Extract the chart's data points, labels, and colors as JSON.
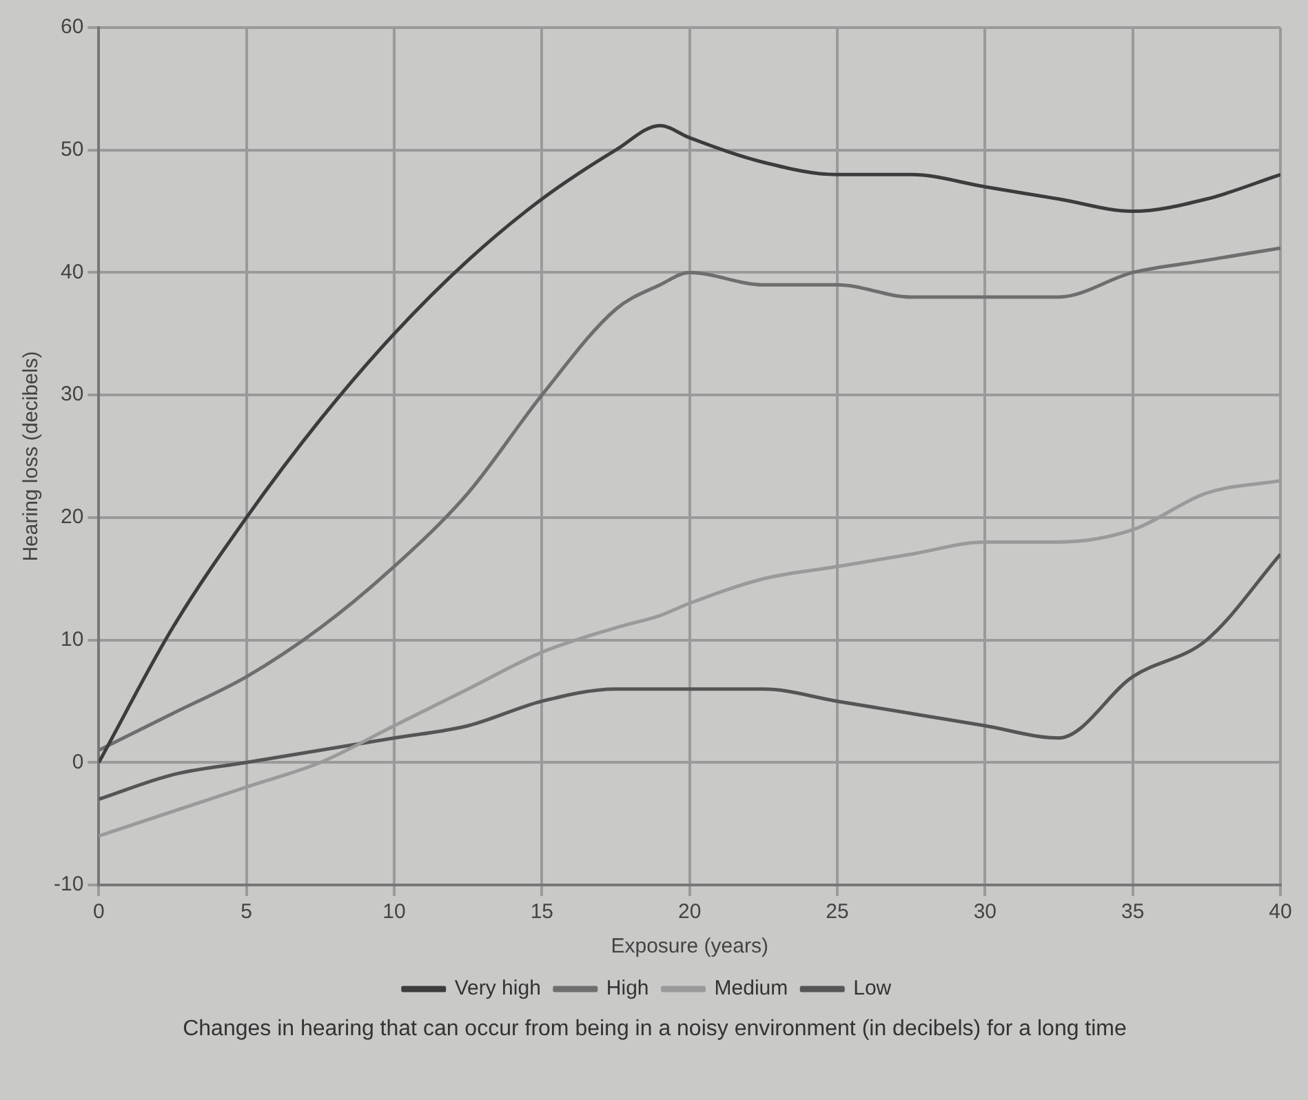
{
  "chart_data": {
    "type": "line",
    "xlabel": "Exposure (years)",
    "ylabel": "Hearing loss (decibels)",
    "x": [
      0,
      2.5,
      5,
      7.5,
      10,
      12.5,
      15,
      17.5,
      19,
      20,
      22.5,
      25,
      27.5,
      30,
      32.5,
      35,
      37.5,
      40
    ],
    "series": [
      {
        "name": "Very high",
        "color": "#3c3c3c",
        "values": [
          0,
          11,
          20,
          28,
          35,
          41,
          46,
          50,
          52,
          51,
          49,
          48,
          48,
          47,
          46,
          45,
          46,
          48
        ]
      },
      {
        "name": "High",
        "color": "#6e6e6e",
        "values": [
          1,
          4,
          7,
          11,
          16,
          22,
          30,
          37,
          39,
          40,
          39,
          39,
          38,
          38,
          38,
          40,
          41,
          42
        ]
      },
      {
        "name": "Medium",
        "color": "#9a9a9a",
        "values": [
          -6,
          -4,
          -2,
          0,
          3,
          6,
          9,
          11,
          12,
          13,
          15,
          16,
          17,
          18,
          18,
          19,
          22,
          23
        ]
      },
      {
        "name": "Low",
        "color": "#555555",
        "values": [
          -3,
          -1,
          0,
          1,
          2,
          3,
          5,
          6,
          6,
          6,
          6,
          5,
          4,
          3,
          2,
          7,
          10,
          17
        ]
      }
    ],
    "xlim": [
      0,
      40
    ],
    "xticks": [
      0,
      5,
      10,
      15,
      20,
      25,
      30,
      35,
      40
    ],
    "ylim": [
      -10,
      60
    ],
    "yticks": [
      -10,
      0,
      10,
      20,
      30,
      40,
      50,
      60
    ],
    "grid": true,
    "legend": "bottom",
    "marker": "none",
    "line_style": "solid",
    "annotations": [
      "Changes in hearing that can occur from being in a noisy environment (in decibels) for a long time"
    ]
  }
}
